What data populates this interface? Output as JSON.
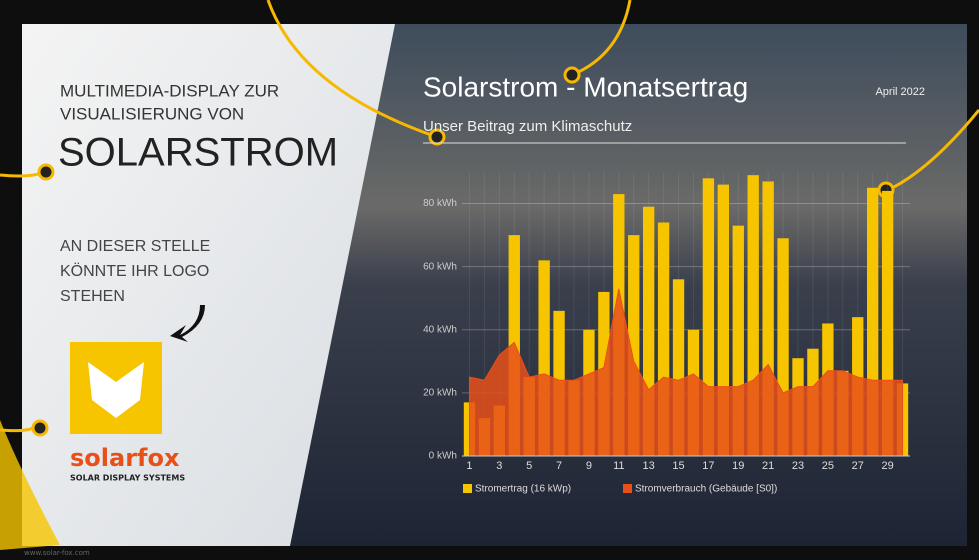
{
  "panel": {
    "intro": [
      "MULTIMEDIA-DISPLAY ZUR",
      "VISUALISIERUNG VON"
    ],
    "headline": "SOLARSTROM",
    "logo_note": [
      "AN DIESER STELLE",
      "KÖNNTE IHR LOGO",
      "STEHEN"
    ],
    "brand": "solarfox",
    "brand_tagline": "SOLAR DISPLAY SYSTEMS",
    "footer": "www.solar-fox.com"
  },
  "date": "April 2022",
  "chart_data": {
    "type": "bar",
    "title": "Solarstrom - Monatsertrag",
    "subtitle": "Unser Beitrag zum Klimaschutz",
    "categories": [
      "1",
      null,
      "3",
      null,
      "5",
      null,
      "7",
      null,
      "9",
      null,
      "11",
      null,
      "13",
      null,
      "15",
      null,
      "17",
      null,
      "19",
      null,
      "21",
      null,
      "23",
      null,
      "25",
      null,
      "27",
      null,
      "29",
      null
    ],
    "series": [
      {
        "name": "Stromertrag (16 kWp)",
        "type": "bar",
        "color": "#f6c500",
        "values": [
          17,
          12,
          16,
          70,
          25,
          62,
          46,
          24,
          40,
          52,
          83,
          70,
          79,
          74,
          56,
          40,
          88,
          86,
          73,
          89,
          87,
          69,
          31,
          34,
          42,
          27,
          44,
          85,
          84,
          23
        ]
      },
      {
        "name": "Stromverbrauch (Gebäude [S0])",
        "type": "area",
        "color": "#e8501a",
        "values": [
          25,
          24,
          32,
          36,
          25,
          26,
          24,
          24,
          26,
          28,
          53,
          30,
          21,
          25,
          24,
          26,
          22,
          22,
          22,
          24,
          29,
          20,
          22,
          22,
          27,
          27,
          25,
          24,
          24,
          24
        ]
      }
    ],
    "ylim": [
      0,
      90
    ],
    "yticks": [
      {
        "value": 0,
        "label": "0 kWh"
      },
      {
        "value": 20,
        "label": "20 kWh"
      },
      {
        "value": 40,
        "label": "40 kWh"
      },
      {
        "value": 60,
        "label": "60 kWh"
      },
      {
        "value": 80,
        "label": "80 kWh"
      }
    ],
    "grid": true,
    "legend": "bottom"
  }
}
